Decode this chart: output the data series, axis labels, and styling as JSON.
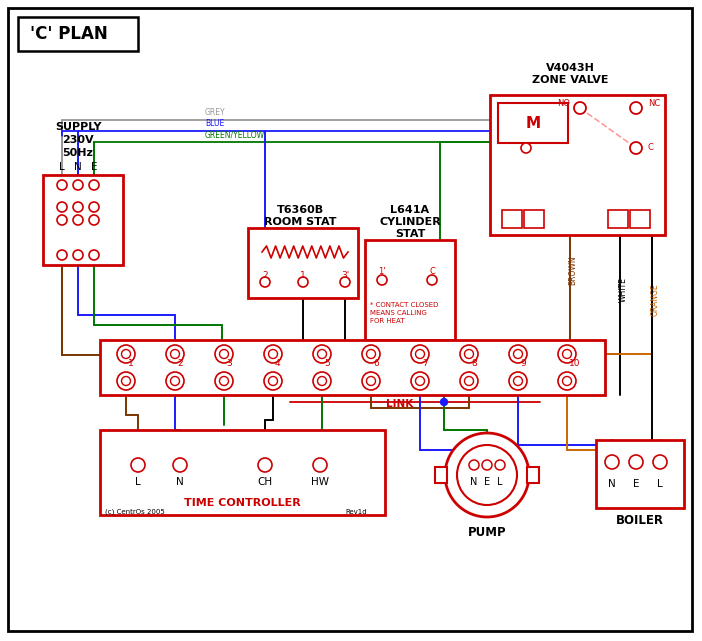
{
  "bg": "#ffffff",
  "black": "#000000",
  "red": "#cc0000",
  "blue": "#1a1aff",
  "green": "#007700",
  "brown": "#7a3500",
  "grey": "#999999",
  "orange": "#cc6600",
  "pink": "#ff9999",
  "title": "'C' PLAN",
  "supply_text": [
    "SUPPLY",
    "230V",
    "50Hz"
  ],
  "zone_valve_text": [
    "V4043H",
    "ZONE VALVE"
  ],
  "room_stat_text": [
    "T6360B",
    "ROOM STAT"
  ],
  "cyl_stat_text": [
    "L641A",
    "CYLINDER",
    "STAT"
  ],
  "time_ctrl_text": "TIME CONTROLLER",
  "pump_text": "PUMP",
  "boiler_text": "BOILER",
  "link_text": "LINK",
  "copyright": "(c) CentrOs 2005",
  "rev": "Rev1d"
}
